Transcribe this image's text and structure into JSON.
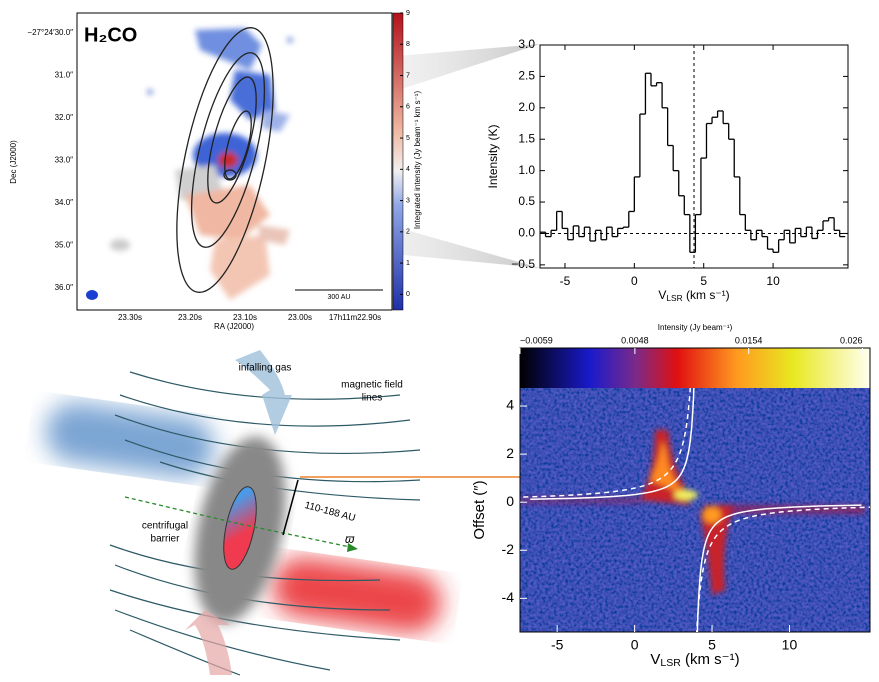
{
  "chart_data": [
    {
      "type": "map",
      "title": "H₂CO",
      "x_label": "RA (J2000)",
      "y_label": "Dec (J2000)",
      "x_tick_labels": [
        "23.30s",
        "23.20s",
        "23.10s",
        "23.00s",
        "17h11m22.90s"
      ],
      "y_tick_labels": [
        "−27°24′30.0″",
        "31.0″",
        "32.0″",
        "33.0″",
        "34.0″",
        "35.0″",
        "36.0″"
      ],
      "scale_bar": "300 AU",
      "colorbar": {
        "label": "Integrated intensity (Jy beam⁻¹ km s⁻¹)",
        "lim": [
          -0.5,
          9
        ],
        "ticks": [
          0,
          1,
          2,
          3,
          4,
          5,
          6,
          7,
          8,
          9
        ]
      }
    },
    {
      "type": "step",
      "x_label": {
        "symbol": "V",
        "subscript": "LSR",
        "unit": " (km s⁻¹)"
      },
      "y_label": "Intensity (K)",
      "color": "#000000",
      "x": [
        -6.6,
        -6.2,
        -5.8,
        -5.4,
        -5.0,
        -4.6,
        -4.2,
        -3.8,
        -3.4,
        -3.0,
        -2.6,
        -2.2,
        -1.8,
        -1.4,
        -1.0,
        -0.6,
        -0.2,
        0.2,
        0.6,
        1.0,
        1.4,
        1.8,
        2.2,
        2.6,
        3.0,
        3.4,
        3.8,
        4.2,
        4.6,
        5.0,
        5.4,
        5.8,
        6.2,
        6.6,
        7.0,
        7.4,
        7.8,
        8.2,
        8.6,
        9.0,
        9.4,
        9.8,
        10.2,
        10.6,
        11.0,
        11.4,
        11.8,
        12.2,
        12.6,
        13.0,
        13.4,
        13.8,
        14.2,
        14.6,
        15.0
      ],
      "values": [
        0.02,
        -0.05,
        0.05,
        0.35,
        0.08,
        -0.1,
        0.12,
        -0.05,
        0.1,
        -0.12,
        0.05,
        -0.1,
        0.1,
        -0.05,
        0.08,
        0.1,
        0.35,
        0.9,
        1.9,
        2.55,
        2.35,
        2.4,
        2.0,
        1.4,
        1.0,
        0.6,
        0.3,
        -0.3,
        0.3,
        1.2,
        1.75,
        1.85,
        1.95,
        1.75,
        1.5,
        0.9,
        0.3,
        0.05,
        -0.1,
        0.05,
        -0.05,
        -0.25,
        -0.3,
        -0.1,
        0.05,
        -0.15,
        0.08,
        -0.05,
        0.1,
        -0.08,
        0.05,
        0.2,
        0.25,
        0.05,
        -0.05
      ],
      "reference_x": 4.3,
      "reference_y": 0,
      "xlim": [
        -6.8,
        15.4
      ],
      "ylim": [
        -0.55,
        3.0
      ],
      "xticks": [
        -5,
        0,
        5,
        10
      ],
      "yticks": [
        {
          "value": -0.5,
          "label": "−0.5"
        },
        {
          "value": 0,
          "label": "0.0"
        },
        0.5,
        {
          "value": 1,
          "label": "1.0"
        },
        1.5,
        {
          "value": 2,
          "label": "2.0"
        },
        2.5,
        {
          "value": 3,
          "label": "3.0"
        }
      ]
    },
    {
      "type": "pv",
      "x_label": {
        "symbol": "V",
        "subscript": "LSR",
        "unit": " (km s⁻¹)"
      },
      "y_label": "Offset (″)",
      "xlim": [
        -7.4,
        15.2
      ],
      "ylim": [
        -5.4,
        4.75
      ],
      "xticks": [
        -5,
        0,
        5,
        10
      ],
      "yticks": [
        -4,
        -2,
        0,
        2,
        4
      ],
      "colorbar": {
        "label": "Intensity (Jy beam⁻¹)",
        "lim": [
          -0.0059,
          0.0267
        ],
        "ticks": [
          {
            "value": -0.0059,
            "label": "−0.0059"
          },
          0.0048,
          0.0154,
          0.026
        ]
      }
    }
  ],
  "diagram": {
    "infalling_gas": "infalling gas",
    "magnetic_field": [
      "magnetic field",
      "lines"
    ],
    "centrifugal_barrier": [
      "centrifugal",
      "barrier"
    ],
    "size": "110-188 AU",
    "omega": "ϖ"
  }
}
